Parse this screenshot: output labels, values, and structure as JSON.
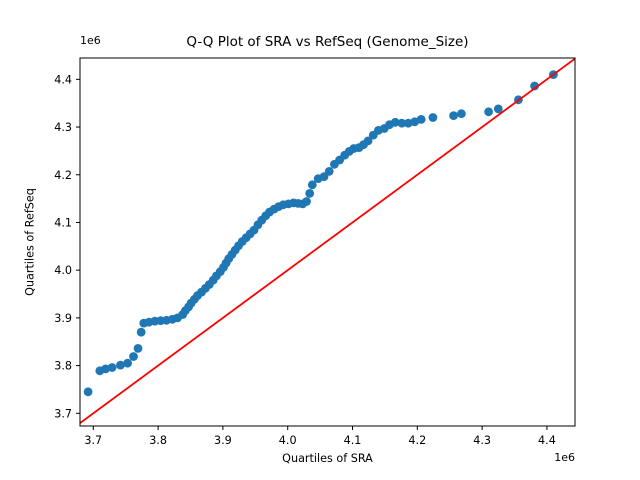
{
  "chart_data": {
    "type": "scatter",
    "title": "Q-Q Plot of SRA vs RefSeq (Genome_Size)",
    "xlabel": "Quartiles of SRA",
    "ylabel": "Quartiles of RefSeq",
    "x_offset_text": "1e6",
    "y_offset_text": "1e6",
    "unit_scale": 1000000,
    "grid": false,
    "legend": "none",
    "background_color": "#ffffff",
    "spine_color": "#000000",
    "xlim": [
      3.6795,
      4.4433
    ],
    "ylim": [
      3.6734,
      4.4447
    ],
    "xticks": [
      3.7,
      3.8,
      3.9,
      4.0,
      4.1,
      4.2,
      4.3,
      4.4
    ],
    "xtick_labels": [
      "3.7",
      "3.8",
      "3.9",
      "4.0",
      "4.1",
      "4.2",
      "4.3",
      "4.4"
    ],
    "yticks": [
      3.7,
      3.8,
      3.9,
      4.0,
      4.1,
      4.2,
      4.3,
      4.4
    ],
    "ytick_labels": [
      "3.7",
      "3.8",
      "3.9",
      "4.0",
      "4.1",
      "4.2",
      "4.3",
      "4.4"
    ],
    "series": [
      {
        "name": "quantile-points",
        "type": "scatter",
        "color": "#1f77b4",
        "points": [
          [
            3.692,
            3.745
          ],
          [
            3.71,
            3.789
          ],
          [
            3.719,
            3.793
          ],
          [
            3.729,
            3.796
          ],
          [
            3.742,
            3.801
          ],
          [
            3.753,
            3.805
          ],
          [
            3.762,
            3.819
          ],
          [
            3.769,
            3.836
          ],
          [
            3.774,
            3.87
          ],
          [
            3.778,
            3.889
          ],
          [
            3.786,
            3.891
          ],
          [
            3.795,
            3.893
          ],
          [
            3.804,
            3.894
          ],
          [
            3.813,
            3.895
          ],
          [
            3.822,
            3.897
          ],
          [
            3.83,
            3.9
          ],
          [
            3.838,
            3.907
          ],
          [
            3.842,
            3.915
          ],
          [
            3.847,
            3.923
          ],
          [
            3.851,
            3.931
          ],
          [
            3.856,
            3.939
          ],
          [
            3.861,
            3.947
          ],
          [
            3.867,
            3.954
          ],
          [
            3.873,
            3.962
          ],
          [
            3.879,
            3.97
          ],
          [
            3.885,
            3.979
          ],
          [
            3.89,
            3.988
          ],
          [
            3.896,
            3.997
          ],
          [
            3.901,
            4.006
          ],
          [
            3.905,
            4.015
          ],
          [
            3.909,
            4.024
          ],
          [
            3.914,
            4.033
          ],
          [
            3.919,
            4.042
          ],
          [
            3.924,
            4.051
          ],
          [
            3.93,
            4.06
          ],
          [
            3.936,
            4.068
          ],
          [
            3.942,
            4.076
          ],
          [
            3.948,
            4.084
          ],
          [
            3.954,
            4.095
          ],
          [
            3.96,
            4.105
          ],
          [
            3.966,
            4.114
          ],
          [
            3.972,
            4.122
          ],
          [
            3.979,
            4.128
          ],
          [
            3.986,
            4.133
          ],
          [
            3.993,
            4.137
          ],
          [
            4.001,
            4.139
          ],
          [
            4.009,
            4.141
          ],
          [
            4.016,
            4.14
          ],
          [
            4.023,
            4.139
          ],
          [
            4.029,
            4.144
          ],
          [
            4.034,
            4.161
          ],
          [
            4.038,
            4.179
          ],
          [
            4.047,
            4.192
          ],
          [
            4.056,
            4.196
          ],
          [
            4.064,
            4.207
          ],
          [
            4.072,
            4.222
          ],
          [
            4.08,
            4.231
          ],
          [
            4.088,
            4.241
          ],
          [
            4.095,
            4.249
          ],
          [
            4.102,
            4.255
          ],
          [
            4.11,
            4.257
          ],
          [
            4.117,
            4.263
          ],
          [
            4.124,
            4.271
          ],
          [
            4.132,
            4.283
          ],
          [
            4.14,
            4.293
          ],
          [
            4.149,
            4.297
          ],
          [
            4.157,
            4.305
          ],
          [
            4.166,
            4.31
          ],
          [
            4.176,
            4.308
          ],
          [
            4.186,
            4.308
          ],
          [
            4.196,
            4.311
          ],
          [
            4.206,
            4.316
          ],
          [
            4.224,
            4.32
          ],
          [
            4.256,
            4.324
          ],
          [
            4.268,
            4.328
          ],
          [
            4.31,
            4.332
          ],
          [
            4.325,
            4.338
          ],
          [
            4.356,
            4.357
          ],
          [
            4.381,
            4.386
          ],
          [
            4.41,
            4.41
          ]
        ]
      },
      {
        "name": "identity-line",
        "type": "line",
        "color": "#ff0000",
        "points": [
          [
            3.6,
            3.6
          ],
          [
            4.5,
            4.5
          ]
        ]
      }
    ]
  }
}
